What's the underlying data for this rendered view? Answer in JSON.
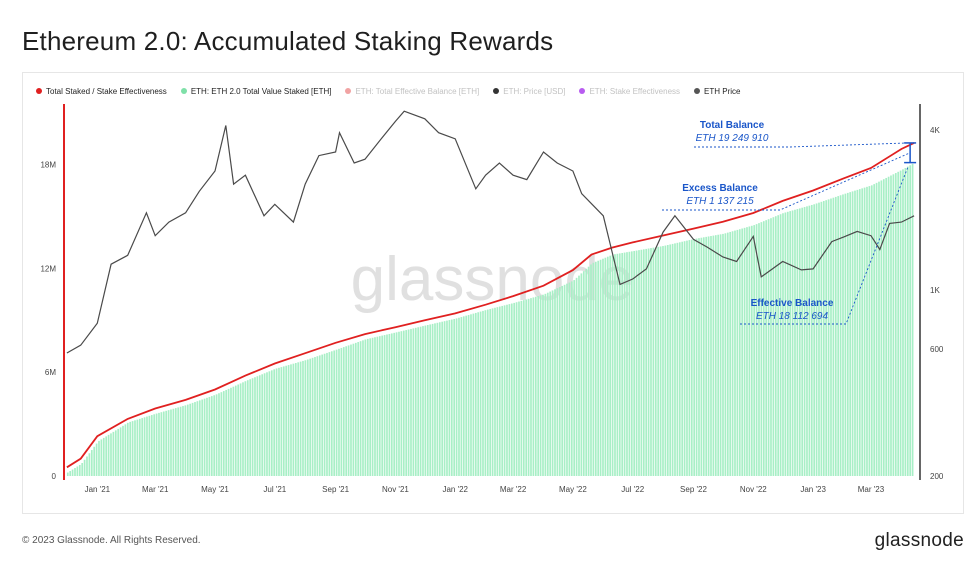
{
  "title": "Ethereum 2.0: Accumulated Staking Rewards",
  "footer": "© 2023 Glassnode. All Rights Reserved.",
  "brand": "glassnode",
  "watermark": "glassnode",
  "legend": [
    {
      "label": "Total Staked / Stake Effectiveness",
      "color": "#e02020",
      "muted": false
    },
    {
      "label": "ETH: ETH 2.0 Total Value Staked [ETH]",
      "color": "#7fe0a8",
      "muted": false
    },
    {
      "label": "ETH: Total Effective Balance [ETH]",
      "color": "#f1a3a3",
      "muted": true
    },
    {
      "label": "ETH: Price [USD]",
      "color": "#333333",
      "muted": true
    },
    {
      "label": "ETH: Stake Effectiveness",
      "color": "#b85cf0",
      "muted": true
    },
    {
      "label": "ETH Price",
      "color": "#555555",
      "muted": false
    }
  ],
  "annotations": {
    "total": {
      "title": "Total Balance",
      "value": "ETH 19 249 910"
    },
    "excess": {
      "title": "Excess Balance",
      "value": "ETH 1 137 215"
    },
    "effective": {
      "title": "Effective Balance",
      "value": "ETH 18 112 694"
    }
  },
  "colors": {
    "total_line": "#e02020",
    "staked_fill": "#a8efc6",
    "price_line": "#4a4a4a",
    "annotation": "#1a56c9"
  },
  "chart_data": {
    "type": "area",
    "x_ticks": [
      "Jan '21",
      "Mar '21",
      "May '21",
      "Jul '21",
      "Sep '21",
      "Nov '21",
      "Jan '22",
      "Mar '22",
      "May '22",
      "Jul '22",
      "Sep '22",
      "Nov '22",
      "Jan '23",
      "Mar '23"
    ],
    "left_axis": {
      "ticks": [
        "0",
        "6M",
        "12M",
        "18M"
      ],
      "tick_values": [
        0,
        6000000,
        12000000,
        18000000
      ],
      "range": [
        0,
        21500000
      ]
    },
    "right_axis": {
      "scale": "log",
      "ticks": [
        "200",
        "600",
        "1K",
        "4K"
      ],
      "tick_values": [
        200,
        600,
        1000,
        4000
      ],
      "range": [
        200,
        5000
      ]
    },
    "x_range": [
      "2020-11-28",
      "2023-04-20"
    ],
    "series": [
      {
        "name": "ETH: ETH 2.0 Total Value Staked [ETH]",
        "axis": "left",
        "x": [
          "2020-12-01",
          "2020-12-15",
          "2021-01-01",
          "2021-02-01",
          "2021-03-01",
          "2021-04-01",
          "2021-05-01",
          "2021-06-01",
          "2021-07-01",
          "2021-08-01",
          "2021-09-01",
          "2021-10-01",
          "2021-11-01",
          "2021-12-01",
          "2022-01-01",
          "2022-02-01",
          "2022-03-01",
          "2022-04-01",
          "2022-05-01",
          "2022-05-20",
          "2022-06-10",
          "2022-07-01",
          "2022-08-01",
          "2022-09-01",
          "2022-10-01",
          "2022-11-01",
          "2022-12-01",
          "2023-01-01",
          "2023-02-01",
          "2023-03-01",
          "2023-04-01",
          "2023-04-14"
        ],
        "values": [
          200000,
          700000,
          2000000,
          3100000,
          3600000,
          4100000,
          4700000,
          5500000,
          6200000,
          6700000,
          7300000,
          7900000,
          8300000,
          8700000,
          9100000,
          9600000,
          10000000,
          10500000,
          11300000,
          12300000,
          12800000,
          13000000,
          13300000,
          13700000,
          14000000,
          14500000,
          15200000,
          15700000,
          16300000,
          16800000,
          17700000,
          18112694
        ]
      },
      {
        "name": "Total Staked / Stake Effectiveness",
        "axis": "left",
        "x": [
          "2020-12-01",
          "2020-12-15",
          "2021-01-01",
          "2021-02-01",
          "2021-03-01",
          "2021-04-01",
          "2021-05-01",
          "2021-06-01",
          "2021-07-01",
          "2021-08-01",
          "2021-09-01",
          "2021-10-01",
          "2021-11-01",
          "2021-12-01",
          "2022-01-01",
          "2022-02-01",
          "2022-03-01",
          "2022-04-01",
          "2022-05-01",
          "2022-05-20",
          "2022-06-10",
          "2022-07-01",
          "2022-08-01",
          "2022-09-01",
          "2022-10-01",
          "2022-11-01",
          "2022-12-01",
          "2023-01-01",
          "2023-02-01",
          "2023-03-01",
          "2023-04-01",
          "2023-04-14"
        ],
        "values": [
          500000,
          1000000,
          2300000,
          3300000,
          3900000,
          4400000,
          5000000,
          5800000,
          6500000,
          7100000,
          7700000,
          8200000,
          8600000,
          9000000,
          9400000,
          9900000,
          10400000,
          11000000,
          11900000,
          12800000,
          13200000,
          13500000,
          13900000,
          14300000,
          14700000,
          15200000,
          15900000,
          16500000,
          17200000,
          17800000,
          18900000,
          19249910
        ]
      },
      {
        "name": "ETH Price",
        "axis": "right",
        "x": [
          "2020-12-01",
          "2020-12-15",
          "2021-01-01",
          "2021-01-15",
          "2021-02-01",
          "2021-02-20",
          "2021-03-01",
          "2021-03-15",
          "2021-04-01",
          "2021-04-15",
          "2021-05-01",
          "2021-05-12",
          "2021-05-20",
          "2021-06-01",
          "2021-06-20",
          "2021-07-01",
          "2021-07-20",
          "2021-08-01",
          "2021-08-15",
          "2021-09-01",
          "2021-09-05",
          "2021-09-20",
          "2021-10-01",
          "2021-10-20",
          "2021-11-01",
          "2021-11-10",
          "2021-12-01",
          "2021-12-15",
          "2022-01-01",
          "2022-01-22",
          "2022-02-01",
          "2022-02-15",
          "2022-03-01",
          "2022-03-15",
          "2022-04-01",
          "2022-04-15",
          "2022-05-01",
          "2022-05-10",
          "2022-06-01",
          "2022-06-18",
          "2022-07-01",
          "2022-07-15",
          "2022-08-01",
          "2022-08-13",
          "2022-09-01",
          "2022-09-15",
          "2022-10-01",
          "2022-10-15",
          "2022-11-01",
          "2022-11-09",
          "2022-12-01",
          "2022-12-20",
          "2023-01-01",
          "2023-01-20",
          "2023-02-01",
          "2023-02-15",
          "2023-03-01",
          "2023-03-10",
          "2023-03-20",
          "2023-04-01",
          "2023-04-14"
        ],
        "values": [
          580,
          620,
          750,
          1250,
          1350,
          1950,
          1600,
          1800,
          1950,
          2350,
          2800,
          4150,
          2500,
          2700,
          1900,
          2100,
          1800,
          2500,
          3200,
          3300,
          3900,
          3000,
          3100,
          3800,
          4300,
          4700,
          4400,
          3900,
          3700,
          2400,
          2700,
          3000,
          2700,
          2600,
          3300,
          3000,
          2800,
          2300,
          1900,
          1050,
          1100,
          1200,
          1650,
          1900,
          1550,
          1450,
          1330,
          1280,
          1590,
          1120,
          1280,
          1190,
          1200,
          1520,
          1580,
          1660,
          1600,
          1420,
          1780,
          1800,
          1900
        ]
      }
    ]
  }
}
